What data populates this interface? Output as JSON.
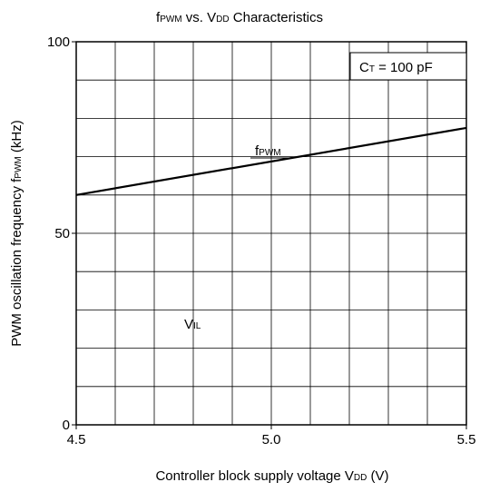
{
  "chart_data": {
    "type": "line",
    "title": {
      "pre": "f",
      "pre_sub": "PWM",
      "mid": " vs. V",
      "mid_sub": "DD",
      "post": " Characteristics"
    },
    "xlabel": {
      "pre": "Controller block supply voltage V",
      "sub": "DD",
      "post": " (V)"
    },
    "ylabel": {
      "pre": "PWM oscillation frequency f",
      "sub": "PWM",
      "post": " (kHz)"
    },
    "xlim": [
      4.5,
      5.5
    ],
    "ylim": [
      0,
      100
    ],
    "x_ticks": [
      {
        "value": 4.5,
        "label": "4.5"
      },
      {
        "value": 5.0,
        "label": "5.0"
      },
      {
        "value": 5.5,
        "label": "5.5"
      }
    ],
    "y_ticks": [
      {
        "value": 0,
        "label": "0"
      },
      {
        "value": 50,
        "label": "50"
      },
      {
        "value": 100,
        "label": "100"
      }
    ],
    "grid": true,
    "grid_x_divisions": 10,
    "grid_y_divisions": 10,
    "series": [
      {
        "name": {
          "main": "f",
          "sub": "PWM"
        },
        "x": [
          4.5,
          5.5
        ],
        "y": [
          60,
          77.5
        ]
      }
    ],
    "annotations": {
      "condition": {
        "pre": "C",
        "sub": "T",
        "post": " = 100 pF"
      },
      "vil": {
        "main": "V",
        "sub": "IL"
      }
    },
    "line_color": "#000000"
  }
}
